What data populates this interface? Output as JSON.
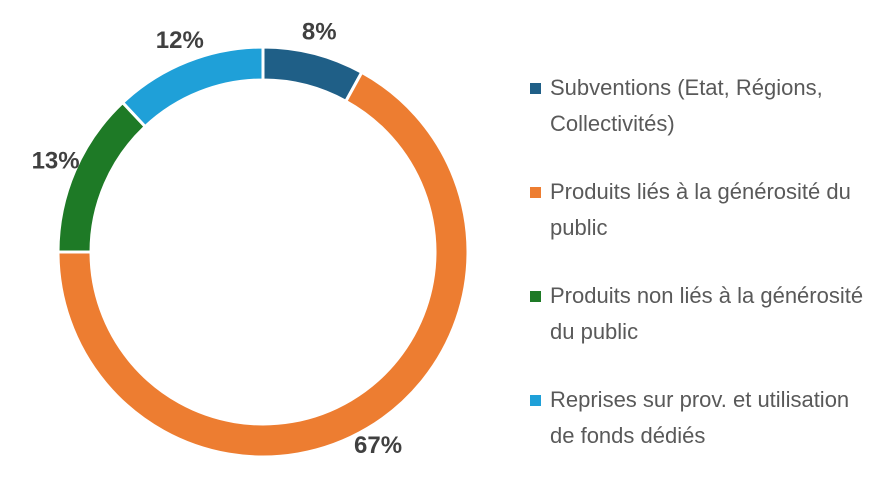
{
  "chart_data": {
    "type": "donut",
    "categories": [
      "Subventions (Etat, Régions, Collectivités)",
      "Produits liés à la générosité du public",
      "Produits non liés à la générosité du public",
      "Reprises sur prov. et utilisation de fonds dédiés"
    ],
    "values": [
      8,
      67,
      13,
      12
    ],
    "value_labels": [
      "8%",
      "67%",
      "13%",
      "12%"
    ],
    "colors": [
      "#1f5f87",
      "#ed7d31",
      "#1e7a26",
      "#1fa0d8"
    ],
    "legend": "right"
  }
}
